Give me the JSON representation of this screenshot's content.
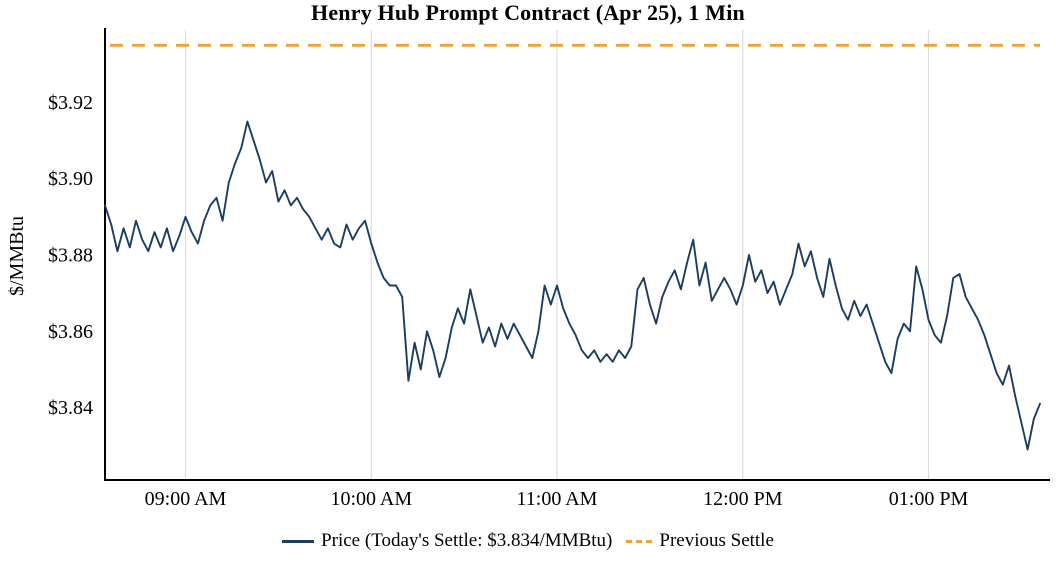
{
  "chart_data": {
    "type": "line",
    "title": "Henry Hub Prompt Contract (Apr 25), 1 Min",
    "ylabel": "$/MMBtu",
    "xlabel": "",
    "grid": "vertical-hour-lines",
    "x_start_min": 514,
    "step_min": 2,
    "ylim": [
      3.821,
      3.939
    ],
    "previous_settle": 3.935,
    "todays_settle": 3.834,
    "series": [
      {
        "name": "Price",
        "color": "#1b3d5f",
        "style": "solid"
      },
      {
        "name": "Previous Settle",
        "color": "#f0a331",
        "style": "dashed"
      }
    ],
    "values": [
      3.893,
      3.888,
      3.881,
      3.887,
      3.882,
      3.889,
      3.884,
      3.881,
      3.886,
      3.882,
      3.887,
      3.881,
      3.885,
      3.89,
      3.886,
      3.883,
      3.889,
      3.893,
      3.895,
      3.889,
      3.899,
      3.904,
      3.908,
      3.915,
      3.91,
      3.905,
      3.899,
      3.902,
      3.894,
      3.897,
      3.893,
      3.895,
      3.892,
      3.89,
      3.887,
      3.884,
      3.887,
      3.883,
      3.882,
      3.888,
      3.884,
      3.887,
      3.889,
      3.883,
      3.878,
      3.874,
      3.872,
      3.872,
      3.869,
      3.847,
      3.857,
      3.85,
      3.86,
      3.855,
      3.848,
      3.853,
      3.861,
      3.866,
      3.862,
      3.871,
      3.864,
      3.857,
      3.861,
      3.856,
      3.862,
      3.858,
      3.862,
      3.859,
      3.856,
      3.853,
      3.86,
      3.872,
      3.867,
      3.872,
      3.866,
      3.862,
      3.859,
      3.855,
      3.853,
      3.855,
      3.852,
      3.854,
      3.852,
      3.855,
      3.853,
      3.856,
      3.871,
      3.874,
      3.867,
      3.862,
      3.869,
      3.873,
      3.876,
      3.871,
      3.878,
      3.884,
      3.872,
      3.878,
      3.868,
      3.871,
      3.874,
      3.871,
      3.867,
      3.872,
      3.88,
      3.873,
      3.876,
      3.87,
      3.873,
      3.867,
      3.871,
      3.875,
      3.883,
      3.877,
      3.881,
      3.874,
      3.869,
      3.879,
      3.872,
      3.866,
      3.863,
      3.868,
      3.864,
      3.867,
      3.862,
      3.857,
      3.852,
      3.849,
      3.858,
      3.862,
      3.86,
      3.877,
      3.871,
      3.863,
      3.859,
      3.857,
      3.864,
      3.874,
      3.875,
      3.869,
      3.866,
      3.863,
      3.859,
      3.854,
      3.849,
      3.846,
      3.851,
      3.843,
      3.836,
      3.829,
      3.837,
      3.841
    ],
    "yticks": [
      {
        "value": 3.84,
        "label": "$3.84"
      },
      {
        "value": 3.86,
        "label": "$3.86"
      },
      {
        "value": 3.88,
        "label": "$3.88"
      },
      {
        "value": 3.9,
        "label": "$3.90"
      },
      {
        "value": 3.92,
        "label": "$3.92"
      }
    ],
    "xticks": [
      {
        "min": 540,
        "label": "09:00 AM"
      },
      {
        "min": 600,
        "label": "10:00 AM"
      },
      {
        "min": 660,
        "label": "11:00 AM"
      },
      {
        "min": 720,
        "label": "12:00 PM"
      },
      {
        "min": 780,
        "label": "01:00 PM"
      }
    ],
    "legend": {
      "position": "bottom-center",
      "items": [
        {
          "label": "Price (Today's Settle: $3.834/MMBtu)",
          "color": "#1b3d5f",
          "style": "solid"
        },
        {
          "label": "Previous Settle",
          "color": "#f0a331",
          "style": "dashed"
        }
      ]
    },
    "colors": {
      "price_line": "#1b3d5f",
      "previous_settle_line": "#f0a331",
      "grid": "#dcdcdc",
      "axis": "#000000",
      "background": "#ffffff",
      "text": "#000000"
    }
  }
}
